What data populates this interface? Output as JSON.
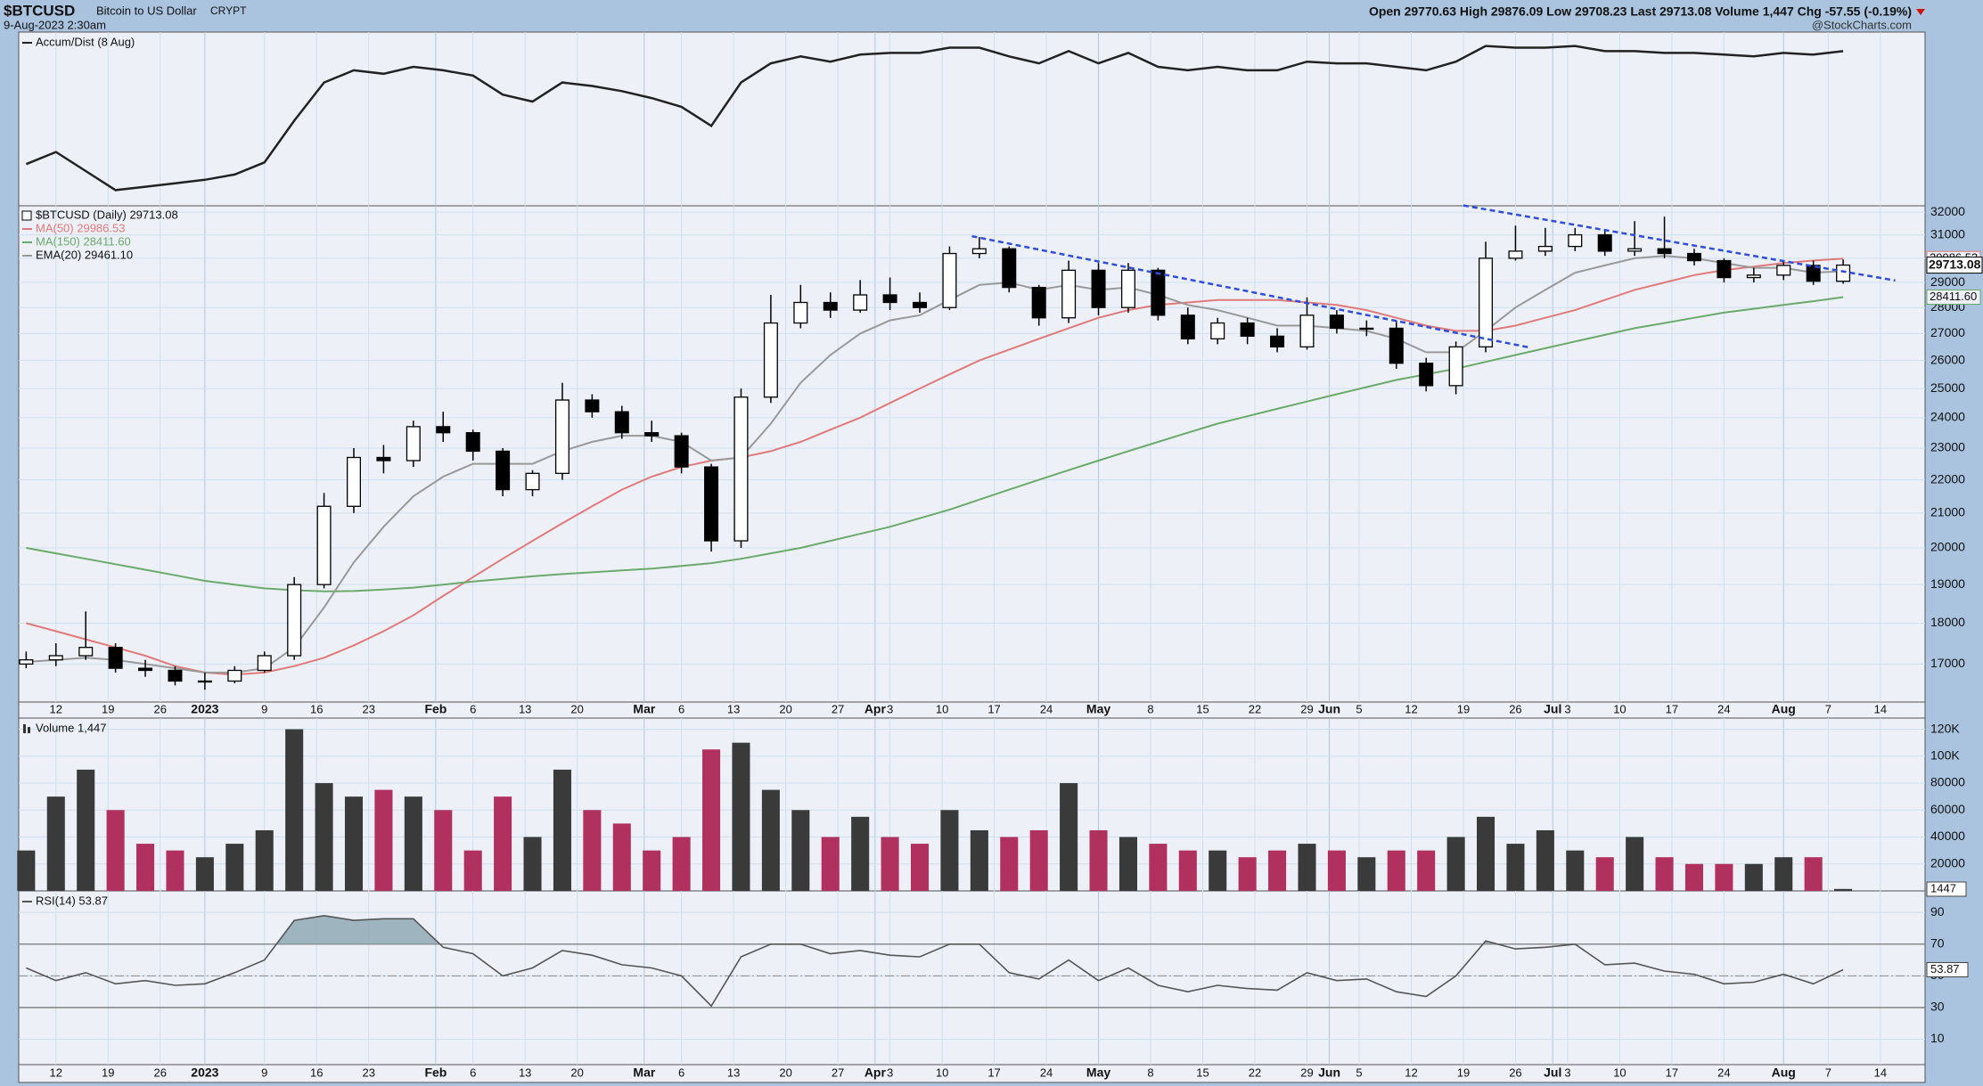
{
  "header": {
    "symbol": "$BTCUSD",
    "name": "Bitcoin to US Dollar",
    "exchange": "CRYPT",
    "date": "9-Aug-2023 2:30am",
    "quote": "Open 29770.63  High 29876.09  Low 29708.23  Last 29713.08  Volume 1,447  Chg -57.55 (-0.19%)",
    "credit": "@StockCharts.com"
  },
  "chart_data": {
    "type": "candlestick",
    "title": "$BTCUSD (Daily) 29713.08",
    "x": [
      "2022-12-08",
      "2022-12-12",
      "2022-12-16",
      "2022-12-20",
      "2022-12-24",
      "2022-12-28",
      "2023-01-01",
      "2023-01-05",
      "2023-01-09",
      "2023-01-13",
      "2023-01-17",
      "2023-01-21",
      "2023-01-25",
      "2023-01-29",
      "2023-02-02",
      "2023-02-06",
      "2023-02-10",
      "2023-02-14",
      "2023-02-18",
      "2023-02-22",
      "2023-02-26",
      "2023-03-02",
      "2023-03-06",
      "2023-03-10",
      "2023-03-14",
      "2023-03-18",
      "2023-03-22",
      "2023-03-26",
      "2023-03-30",
      "2023-04-03",
      "2023-04-07",
      "2023-04-11",
      "2023-04-15",
      "2023-04-19",
      "2023-04-23",
      "2023-04-27",
      "2023-05-01",
      "2023-05-05",
      "2023-05-09",
      "2023-05-13",
      "2023-05-17",
      "2023-05-21",
      "2023-05-25",
      "2023-05-29",
      "2023-06-02",
      "2023-06-06",
      "2023-06-10",
      "2023-06-14",
      "2023-06-18",
      "2023-06-22",
      "2023-06-26",
      "2023-06-30",
      "2023-07-04",
      "2023-07-08",
      "2023-07-12",
      "2023-07-16",
      "2023-07-20",
      "2023-07-24",
      "2023-07-28",
      "2023-08-01",
      "2023-08-05",
      "2023-08-09"
    ],
    "xlim": [
      "2022-12-07",
      "2023-08-20"
    ],
    "xticks": [
      {
        "value": "2022-12-12",
        "label": "12"
      },
      {
        "value": "2022-12-19",
        "label": "19"
      },
      {
        "value": "2022-12-26",
        "label": "26"
      },
      {
        "value": "2023-01-01",
        "label": "2023"
      },
      {
        "value": "2023-01-09",
        "label": "9"
      },
      {
        "value": "2023-01-16",
        "label": "16"
      },
      {
        "value": "2023-01-23",
        "label": "23"
      },
      {
        "value": "2023-02-01",
        "label": "Feb"
      },
      {
        "value": "2023-02-06",
        "label": "6"
      },
      {
        "value": "2023-02-13",
        "label": "13"
      },
      {
        "value": "2023-02-20",
        "label": "20"
      },
      {
        "value": "2023-03-01",
        "label": "Mar"
      },
      {
        "value": "2023-03-06",
        "label": "6"
      },
      {
        "value": "2023-03-13",
        "label": "13"
      },
      {
        "value": "2023-03-20",
        "label": "20"
      },
      {
        "value": "2023-03-27",
        "label": "27"
      },
      {
        "value": "2023-04-01",
        "label": "Apr"
      },
      {
        "value": "2023-04-03",
        "label": "3"
      },
      {
        "value": "2023-04-10",
        "label": "10"
      },
      {
        "value": "2023-04-17",
        "label": "17"
      },
      {
        "value": "2023-04-24",
        "label": "24"
      },
      {
        "value": "2023-05-01",
        "label": "May"
      },
      {
        "value": "2023-05-08",
        "label": "8"
      },
      {
        "value": "2023-05-15",
        "label": "15"
      },
      {
        "value": "2023-05-22",
        "label": "22"
      },
      {
        "value": "2023-05-29",
        "label": "29"
      },
      {
        "value": "2023-06-01",
        "label": "Jun"
      },
      {
        "value": "2023-06-05",
        "label": "5"
      },
      {
        "value": "2023-06-12",
        "label": "12"
      },
      {
        "value": "2023-06-19",
        "label": "19"
      },
      {
        "value": "2023-06-26",
        "label": "26"
      },
      {
        "value": "2023-07-01",
        "label": "Jul"
      },
      {
        "value": "2023-07-03",
        "label": "3"
      },
      {
        "value": "2023-07-10",
        "label": "10"
      },
      {
        "value": "2023-07-17",
        "label": "17"
      },
      {
        "value": "2023-07-24",
        "label": "24"
      },
      {
        "value": "2023-08-01",
        "label": "Aug"
      },
      {
        "value": "2023-08-07",
        "label": "7"
      },
      {
        "value": "2023-08-14",
        "label": "14"
      }
    ],
    "open": [
      17000,
      17100,
      17200,
      17400,
      16900,
      16850,
      16600,
      16600,
      16850,
      17200,
      19000,
      21200,
      22700,
      22600,
      23700,
      23500,
      22900,
      21700,
      22200,
      24600,
      24200,
      23500,
      23400,
      22400,
      20200,
      24700,
      27400,
      28200,
      27900,
      28500,
      28200,
      28000,
      30200,
      30400,
      28800,
      27600,
      29500,
      28000,
      29500,
      27700,
      26800,
      27400,
      26900,
      26500,
      27700,
      27200,
      27200,
      25900,
      25100,
      26500,
      30000,
      30300,
      30500,
      31000,
      30300,
      30400,
      30200,
      29900,
      29200,
      29300,
      29700,
      29050
    ],
    "high": [
      17300,
      17500,
      18300,
      17500,
      17100,
      16950,
      16800,
      16950,
      17300,
      19200,
      21600,
      23000,
      23100,
      23900,
      24200,
      23600,
      23000,
      22300,
      25200,
      24800,
      24400,
      23900,
      23500,
      22500,
      25000,
      28500,
      28900,
      28600,
      29100,
      29200,
      28600,
      30500,
      30900,
      30500,
      28900,
      29900,
      29800,
      29800,
      29600,
      28000,
      27600,
      27600,
      27200,
      28400,
      27900,
      27500,
      27500,
      26100,
      26700,
      30700,
      31400,
      31300,
      31300,
      31200,
      31600,
      31800,
      30400,
      30000,
      29600,
      29900,
      29900,
      29950
    ],
    "low": [
      16900,
      16950,
      17100,
      16800,
      16700,
      16500,
      16400,
      16550,
      16800,
      17100,
      18900,
      21000,
      22200,
      22400,
      23200,
      22600,
      21500,
      21500,
      22000,
      24000,
      23300,
      23200,
      22200,
      19900,
      20000,
      24500,
      27200,
      27600,
      27800,
      27900,
      27800,
      27900,
      30000,
      28600,
      27300,
      27400,
      27700,
      27800,
      27500,
      26600,
      26600,
      26600,
      26300,
      26400,
      27000,
      26900,
      25700,
      24900,
      24800,
      26300,
      29900,
      30100,
      30300,
      30100,
      30100,
      30000,
      29700,
      29000,
      29000,
      29100,
      28900,
      28950
    ],
    "close": [
      17100,
      17200,
      17400,
      16900,
      16850,
      16600,
      16600,
      16850,
      17200,
      19000,
      21200,
      22700,
      22600,
      23700,
      23500,
      22900,
      21700,
      22200,
      24600,
      24200,
      23500,
      23400,
      22400,
      20200,
      24700,
      27400,
      28200,
      27900,
      28500,
      28200,
      28000,
      30200,
      30400,
      28800,
      27600,
      29500,
      28000,
      29500,
      27700,
      26800,
      27400,
      26900,
      26500,
      27700,
      27200,
      27200,
      25900,
      25100,
      26500,
      30000,
      30300,
      30500,
      31000,
      30300,
      30400,
      30200,
      29900,
      29200,
      29300,
      29700,
      29050,
      29713.08
    ],
    "candle_color": "#000000",
    "ylim": [
      16120,
      32285
    ],
    "yticks": [
      17000,
      18000,
      19000,
      20000,
      21000,
      22000,
      23000,
      24000,
      25000,
      26000,
      27000,
      28000,
      29000,
      30000,
      31000,
      32000
    ],
    "log_scale": true,
    "grid": true,
    "series": [
      {
        "name": "MA(50) 29986.53",
        "color": "#e07a7a",
        "tag": "29986.53",
        "values": [
          18000,
          17800,
          17600,
          17400,
          17200,
          16950,
          16800,
          16750,
          16800,
          16950,
          17150,
          17450,
          17800,
          18200,
          18700,
          19200,
          19700,
          20200,
          20700,
          21200,
          21700,
          22100,
          22400,
          22600,
          22700,
          22900,
          23200,
          23600,
          24000,
          24500,
          25000,
          25500,
          26000,
          26400,
          26800,
          27200,
          27600,
          27900,
          28100,
          28200,
          28300,
          28300,
          28300,
          28200,
          28100,
          27900,
          27600,
          27300,
          27100,
          27100,
          27300,
          27600,
          27900,
          28300,
          28700,
          29000,
          29300,
          29500,
          29650,
          29800,
          29900,
          29986.53
        ]
      },
      {
        "name": "MA(150) 28411.60",
        "color": "#6aaa6a",
        "tag": "28411.60",
        "values": [
          20000,
          19850,
          19700,
          19550,
          19400,
          19250,
          19100,
          19000,
          18900,
          18850,
          18820,
          18830,
          18870,
          18920,
          19000,
          19080,
          19150,
          19220,
          19280,
          19330,
          19380,
          19430,
          19500,
          19580,
          19700,
          19850,
          20000,
          20200,
          20400,
          20600,
          20850,
          21100,
          21400,
          21700,
          22000,
          22300,
          22600,
          22900,
          23200,
          23500,
          23800,
          24050,
          24300,
          24550,
          24800,
          25050,
          25300,
          25500,
          25700,
          25950,
          26200,
          26450,
          26700,
          26950,
          27200,
          27400,
          27600,
          27800,
          27950,
          28100,
          28250,
          28411.6
        ]
      },
      {
        "name": "EMA(20) 29461.10",
        "color": "#999999",
        "values": [
          17050,
          17100,
          17150,
          17100,
          17000,
          16900,
          16800,
          16800,
          16900,
          17400,
          18400,
          19600,
          20600,
          21500,
          22100,
          22500,
          22500,
          22500,
          22900,
          23200,
          23400,
          23400,
          23200,
          22600,
          22700,
          23800,
          25200,
          26200,
          27000,
          27500,
          27700,
          28300,
          28900,
          29000,
          28700,
          28900,
          28700,
          28800,
          28500,
          28100,
          27900,
          27600,
          27300,
          27300,
          27200,
          27100,
          26800,
          26300,
          26300,
          27100,
          28000,
          28700,
          29400,
          29700,
          30000,
          30100,
          30000,
          29800,
          29600,
          29600,
          29400,
          29461.1
        ]
      }
    ],
    "trendlines": [
      {
        "x": [
          "2023-04-14",
          "2023-06-28"
        ],
        "y": [
          30940,
          26470
        ]
      },
      {
        "x": [
          "2023-06-19",
          "2023-08-16"
        ],
        "y": [
          32300,
          29080
        ]
      }
    ],
    "trendline_color": "#2f4fd8",
    "ad": {
      "title": "Accum/Dist (8 Aug)",
      "color": "#222222",
      "ylim": [
        0,
        100
      ],
      "values": [
        24,
        31,
        20,
        9,
        11,
        13,
        15,
        18,
        25,
        49,
        71,
        78,
        76,
        80,
        78,
        75,
        64,
        60,
        71,
        69,
        66,
        62,
        57,
        46,
        71,
        82,
        86,
        83,
        87,
        88,
        88,
        91,
        91,
        86,
        82,
        89,
        82,
        88,
        80,
        78,
        80,
        78,
        78,
        83,
        82,
        82,
        80,
        78,
        83,
        92,
        91,
        91,
        92,
        89,
        89,
        88,
        88,
        87,
        86,
        88,
        87,
        89
      ]
    },
    "volume": {
      "title": "Volume 1,447",
      "up_color": "#3a3a3a",
      "down_color": "#b0305e",
      "ylim": [
        0,
        128300
      ],
      "yticks": [
        {
          "value": 120000,
          "label": "120K"
        },
        {
          "value": 100000,
          "label": "100K"
        },
        80000,
        60000,
        40000,
        20000
      ],
      "values": [
        30000,
        70000,
        90000,
        60000,
        35000,
        30000,
        25000,
        35000,
        45000,
        120000,
        80000,
        70000,
        75000,
        70000,
        60000,
        30000,
        70000,
        40000,
        90000,
        60000,
        50000,
        30000,
        40000,
        105000,
        110000,
        75000,
        60000,
        40000,
        55000,
        40000,
        35000,
        60000,
        45000,
        40000,
        45000,
        80000,
        45000,
        40000,
        35000,
        30000,
        30000,
        25000,
        30000,
        35000,
        30000,
        25000,
        30000,
        30000,
        40000,
        55000,
        35000,
        45000,
        30000,
        25000,
        40000,
        25000,
        20000,
        20000,
        20000,
        25000,
        25000,
        1447
      ]
    },
    "rsi": {
      "title": "RSI(14) 53.87",
      "color": "#555555",
      "fill": "#8fa9b4",
      "ylim": [
        -6,
        103.6
      ],
      "yticks": [
        10,
        30,
        50,
        70,
        90
      ],
      "levels": [
        30,
        70
      ],
      "midline": 50,
      "values": [
        55,
        47,
        52,
        45,
        47,
        44,
        45,
        52,
        60,
        85,
        88,
        85,
        86,
        86,
        68,
        64,
        50,
        55,
        66,
        63,
        57,
        55,
        50,
        31,
        62,
        70,
        70,
        64,
        66,
        63,
        62,
        70,
        70,
        52,
        48,
        60,
        47,
        55,
        44,
        40,
        44,
        42,
        41,
        52,
        47,
        48,
        40,
        37,
        50,
        72,
        67,
        68,
        70,
        57,
        58,
        53,
        51,
        45,
        46,
        51,
        45,
        53.87
      ]
    }
  }
}
